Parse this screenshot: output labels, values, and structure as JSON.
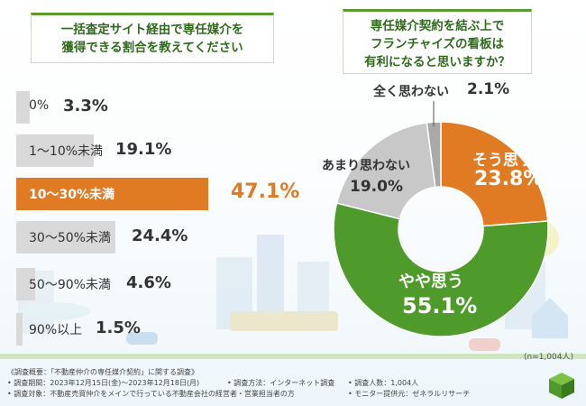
{
  "left_question": [
    "一括査定サイト経由で専任媒介を",
    "獲得できる割合を教えてください"
  ],
  "right_question": [
    "専任媒介契約を結ぶ上で",
    "フランチャイズの看板は",
    "有利になると思いますか？"
  ],
  "chart_data": [
    {
      "type": "bar",
      "title": "一括査定サイト経由で専任媒介を獲得できる割合を教えてください",
      "categories": [
        "0%",
        "1〜10%未満",
        "10〜30%未満",
        "30〜50%未満",
        "50〜90%未満",
        "90%以上"
      ],
      "value_labels": [
        "3.3%",
        "19.1%",
        "47.1%",
        "24.4%",
        "4.6%",
        "1.5%"
      ],
      "values": [
        3.3,
        19.1,
        47.1,
        24.4,
        4.6,
        1.5
      ],
      "highlight_index": 2,
      "unit": "%"
    },
    {
      "type": "pie",
      "title": "専任媒介契約を結ぶ上でフランチャイズの看板は有利になると思いますか？",
      "categories": [
        "そう思う",
        "やや思う",
        "あまり思わない",
        "全く思わない"
      ],
      "value_labels": [
        "23.8%",
        "55.1%",
        "19.0%",
        "2.1%"
      ],
      "values": [
        23.8,
        55.1,
        19.0,
        2.1
      ],
      "colors": [
        "#e07b24",
        "#4e9a2a",
        "#c8c8c8",
        "#a9a9a9"
      ]
    }
  ],
  "colors": {
    "bar_gray": "#d9d9d9",
    "bar_orange": "#e07b24",
    "title_green": "#2f6b1d"
  },
  "sample_size": "(n=1,004人)",
  "notes": {
    "outline": "《調査概要：「不動産仲介の専任媒介契約」に関する調査》",
    "period": "• 調査期間：2023年12月15日(金)〜2023年12月18日(月)",
    "method": "• 調査方法：インターネット調査",
    "count": "• 調査人数：1,004人",
    "target": "• 調査対象：不動産売買仲介をメインで行っている不動産会社の経営者・営業担当者の方",
    "provider": "• モニター提供元：ゼネラルリサーチ"
  }
}
